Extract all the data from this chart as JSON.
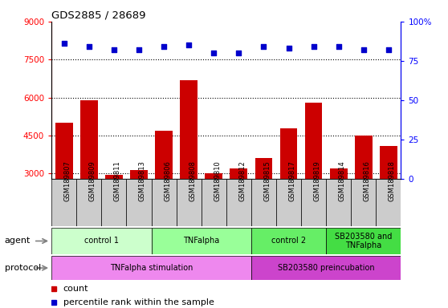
{
  "title": "GDS2885 / 28689",
  "samples": [
    "GSM189807",
    "GSM189809",
    "GSM189811",
    "GSM189813",
    "GSM189806",
    "GSM189808",
    "GSM189810",
    "GSM189812",
    "GSM189815",
    "GSM189817",
    "GSM189819",
    "GSM189814",
    "GSM189816",
    "GSM189818"
  ],
  "counts": [
    5000,
    5900,
    2950,
    3150,
    4700,
    6700,
    3000,
    3200,
    3600,
    4800,
    5800,
    3200,
    4500,
    4100
  ],
  "percentile_ranks": [
    86,
    84,
    82,
    82,
    84,
    85,
    80,
    80,
    84,
    83,
    84,
    84,
    82,
    82
  ],
  "ylim_left": [
    2800,
    9000
  ],
  "ylim_right": [
    0,
    100
  ],
  "yticks_left": [
    3000,
    4500,
    6000,
    7500,
    9000
  ],
  "yticks_right": [
    0,
    25,
    50,
    75,
    100
  ],
  "bar_color": "#cc0000",
  "dot_color": "#0000cc",
  "agent_groups": [
    {
      "label": "control 1",
      "start": 0,
      "end": 4,
      "color": "#ccffcc"
    },
    {
      "label": "TNFalpha",
      "start": 4,
      "end": 8,
      "color": "#99ff99"
    },
    {
      "label": "control 2",
      "start": 8,
      "end": 11,
      "color": "#66ee66"
    },
    {
      "label": "SB203580 and\nTNFalpha",
      "start": 11,
      "end": 14,
      "color": "#44dd44"
    }
  ],
  "protocol_groups": [
    {
      "label": "TNFalpha stimulation",
      "start": 0,
      "end": 8,
      "color": "#ee88ee"
    },
    {
      "label": "SB203580 preincubation",
      "start": 8,
      "end": 14,
      "color": "#cc44cc"
    }
  ],
  "agent_label": "agent",
  "protocol_label": "protocol",
  "legend_count_label": "count",
  "legend_pct_label": "percentile rank within the sample",
  "xtick_bg_color": "#cccccc",
  "plot_bg_color": "#ffffff",
  "grid_color": "#000000",
  "spine_color": "#000000"
}
